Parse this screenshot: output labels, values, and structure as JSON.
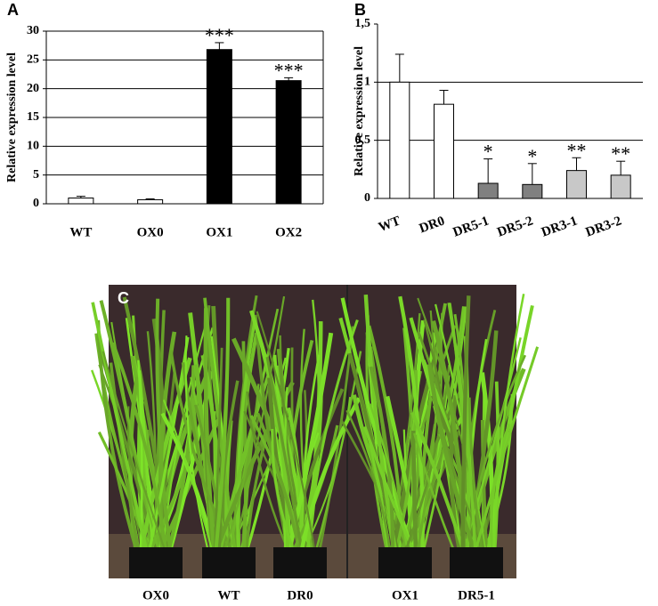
{
  "chart_data": [
    {
      "type": "bar",
      "panel_label": "A",
      "y_label": "Relative expression level",
      "categories": [
        "WT",
        "OX0",
        "OX1",
        "OX2"
      ],
      "values": [
        1.0,
        0.7,
        26.8,
        21.4
      ],
      "errors": [
        0.3,
        0.15,
        1.2,
        0.5
      ],
      "colors": [
        "#ffffff",
        "#ffffff",
        "#000000",
        "#000000"
      ],
      "annotations": [
        null,
        null,
        "***",
        "***"
      ],
      "ylim": [
        0,
        30
      ],
      "yticks": [
        0,
        5,
        10,
        15,
        20,
        25,
        30
      ],
      "grid": true
    },
    {
      "type": "bar",
      "panel_label": "B",
      "y_label": "Relative expression level",
      "categories": [
        "WT",
        "DR0",
        "DR5-1",
        "DR5-2",
        "DR3-1",
        "DR3-2"
      ],
      "values": [
        1.0,
        0.81,
        0.13,
        0.12,
        0.24,
        0.2
      ],
      "errors": [
        0.24,
        0.12,
        0.21,
        0.18,
        0.11,
        0.12
      ],
      "colors": [
        "#ffffff",
        "#ffffff",
        "#808080",
        "#808080",
        "#c8c8c8",
        "#c8c8c8"
      ],
      "annotations": [
        null,
        null,
        "*",
        "*",
        "**",
        "**"
      ],
      "ylim": [
        0,
        1.5
      ],
      "yticks": [
        0,
        {
          "value": 0.5,
          "label": "0,5"
        },
        1,
        {
          "value": 1.5,
          "label": "1,5"
        }
      ],
      "grid": true
    }
  ],
  "photo": {
    "panel_label": "C",
    "labels": [
      "OX0",
      "WT",
      "DR0",
      "OX1",
      "DR5-1"
    ]
  }
}
